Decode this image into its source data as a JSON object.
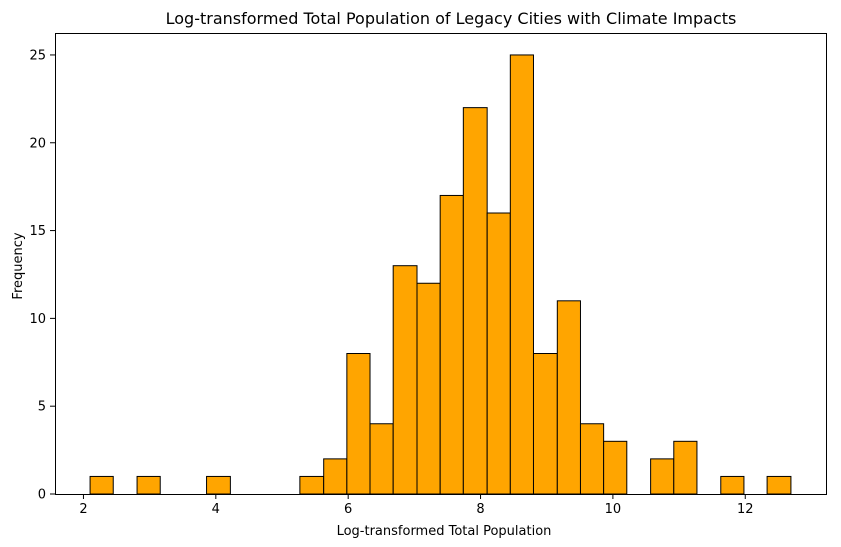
{
  "chart_data": {
    "type": "bar",
    "title": "Log-transformed Total Population of Legacy Cities with Climate Impacts",
    "xlabel": "Log-transformed Total Population",
    "ylabel": "Frequency",
    "bar_color": "#ffa500",
    "edge_color": "#000000",
    "bin_width": 0.3526,
    "bins": [
      {
        "x0": 2.1,
        "x1": 2.45,
        "count": 1
      },
      {
        "x0": 2.81,
        "x1": 3.16,
        "count": 1
      },
      {
        "x0": 3.86,
        "x1": 4.22,
        "count": 1
      },
      {
        "x0": 5.27,
        "x1": 5.63,
        "count": 1
      },
      {
        "x0": 5.63,
        "x1": 5.98,
        "count": 2
      },
      {
        "x0": 5.98,
        "x1": 6.33,
        "count": 8
      },
      {
        "x0": 6.33,
        "x1": 6.68,
        "count": 4
      },
      {
        "x0": 6.68,
        "x1": 7.04,
        "count": 13
      },
      {
        "x0": 7.04,
        "x1": 7.39,
        "count": 12
      },
      {
        "x0": 7.39,
        "x1": 7.74,
        "count": 17
      },
      {
        "x0": 7.74,
        "x1": 8.1,
        "count": 22
      },
      {
        "x0": 8.1,
        "x1": 8.45,
        "count": 16
      },
      {
        "x0": 8.45,
        "x1": 8.8,
        "count": 25
      },
      {
        "x0": 8.8,
        "x1": 9.16,
        "count": 8
      },
      {
        "x0": 9.16,
        "x1": 9.51,
        "count": 11
      },
      {
        "x0": 9.51,
        "x1": 9.86,
        "count": 4
      },
      {
        "x0": 9.86,
        "x1": 10.21,
        "count": 3
      },
      {
        "x0": 10.57,
        "x1": 10.92,
        "count": 2
      },
      {
        "x0": 10.92,
        "x1": 11.27,
        "count": 3
      },
      {
        "x0": 11.63,
        "x1": 11.98,
        "count": 1
      },
      {
        "x0": 12.33,
        "x1": 12.69,
        "count": 1
      }
    ],
    "xlim": [
      1.57,
      13.22
    ],
    "ylim": [
      0,
      26.25
    ],
    "xticks": [
      2,
      4,
      6,
      8,
      10,
      12
    ],
    "yticks": [
      0,
      5,
      10,
      15,
      20,
      25
    ],
    "grid": false,
    "legend": false
  }
}
